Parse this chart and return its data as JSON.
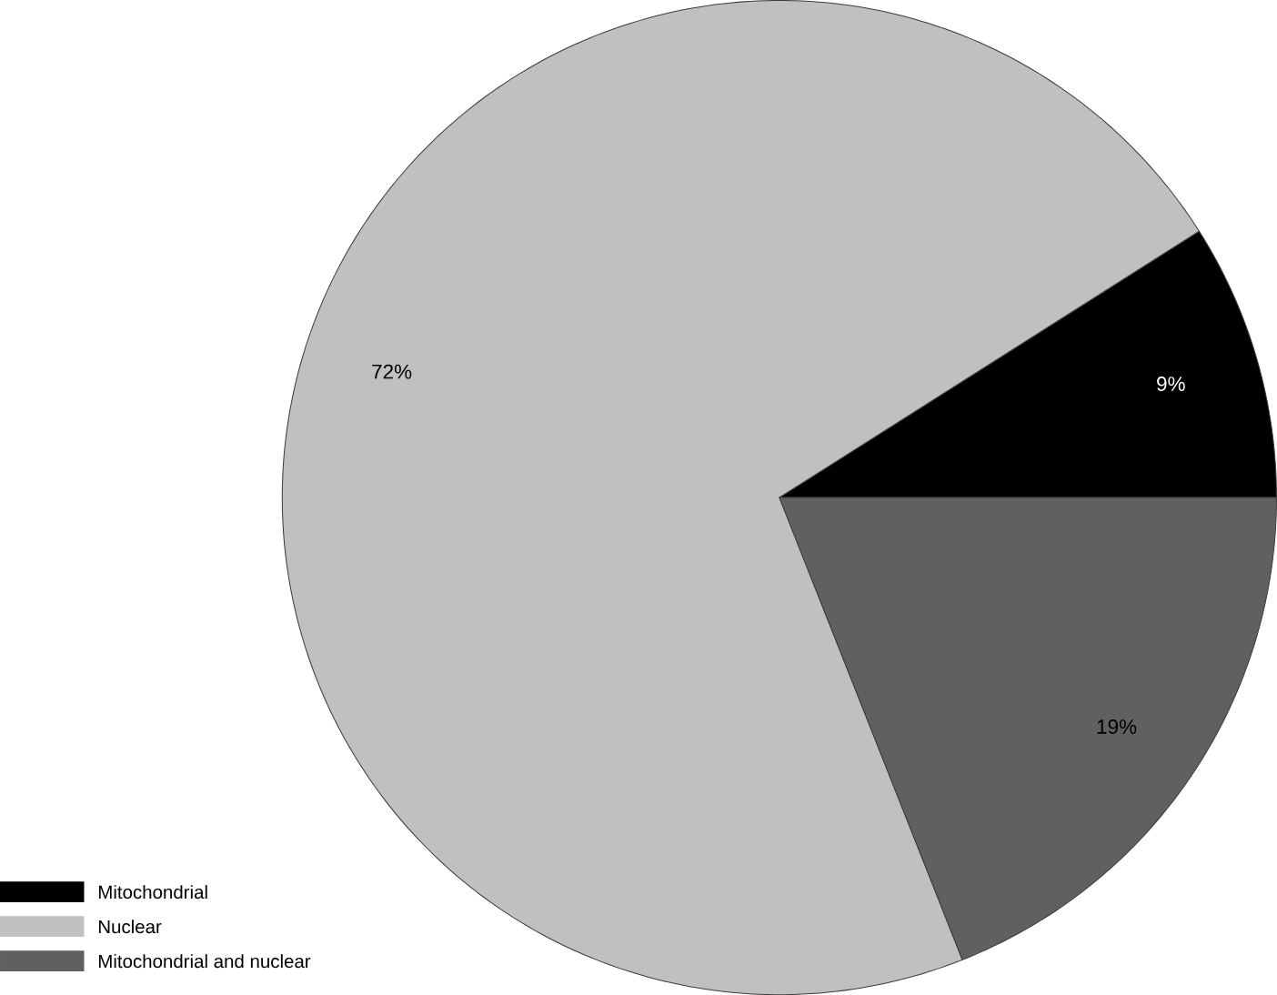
{
  "chart_data": {
    "type": "pie",
    "categories": [
      "Mitochondrial",
      "Nuclear",
      "Mitochondrial and nuclear"
    ],
    "values": [
      9,
      72,
      19
    ],
    "colors": [
      "#000000",
      "#c0c0c0",
      "#606060"
    ],
    "value_labels": [
      "9%",
      "72%",
      "19%"
    ],
    "legend": "bottom left"
  }
}
